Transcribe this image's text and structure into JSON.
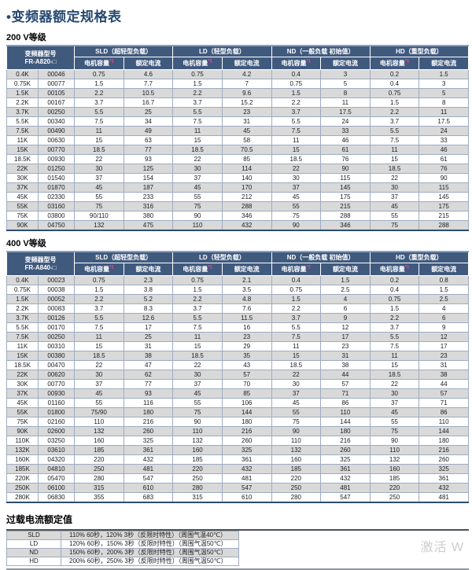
{
  "title_bullet": "•",
  "title": "变频器额定规格表",
  "watermark": "激活 W",
  "columns": {
    "capacity": "电机容量",
    "capacity_note": "*1",
    "current": "额定电流"
  },
  "load_groups": [
    "SLD（超轻型负载）",
    "LD（轻型负载）",
    "ND（一般负载 初始值）",
    "HD（重型负载）"
  ],
  "table_200v": {
    "section": "200 V等级",
    "model_line1": "变频器型号",
    "model_line2": "FR-A820-□",
    "rows": [
      [
        "0.4K",
        "00046",
        "0.75",
        "4.6",
        "0.75",
        "4.2",
        "0.4",
        "3",
        "0.2",
        "1.5"
      ],
      [
        "0.75K",
        "00077",
        "1.5",
        "7.7",
        "1.5",
        "7",
        "0.75",
        "5",
        "0.4",
        "3"
      ],
      [
        "1.5K",
        "00105",
        "2.2",
        "10.5",
        "2.2",
        "9.6",
        "1.5",
        "8",
        "0.75",
        "5"
      ],
      [
        "2.2K",
        "00167",
        "3.7",
        "16.7",
        "3.7",
        "15.2",
        "2.2",
        "11",
        "1.5",
        "8"
      ],
      [
        "3.7K",
        "00250",
        "5.5",
        "25",
        "5.5",
        "23",
        "3.7",
        "17.5",
        "2.2",
        "11"
      ],
      [
        "5.5K",
        "00340",
        "7.5",
        "34",
        "7.5",
        "31",
        "5.5",
        "24",
        "3.7",
        "17.5"
      ],
      [
        "7.5K",
        "00490",
        "11",
        "49",
        "11",
        "45",
        "7.5",
        "33",
        "5.5",
        "24"
      ],
      [
        "11K",
        "00630",
        "15",
        "63",
        "15",
        "58",
        "11",
        "46",
        "7.5",
        "33"
      ],
      [
        "15K",
        "00770",
        "18.5",
        "77",
        "18.5",
        "70.5",
        "15",
        "61",
        "11",
        "46"
      ],
      [
        "18.5K",
        "00930",
        "22",
        "93",
        "22",
        "85",
        "18.5",
        "76",
        "15",
        "61"
      ],
      [
        "22K",
        "01250",
        "30",
        "125",
        "30",
        "114",
        "22",
        "90",
        "18.5",
        "76"
      ],
      [
        "30K",
        "01540",
        "37",
        "154",
        "37",
        "140",
        "30",
        "115",
        "22",
        "90"
      ],
      [
        "37K",
        "01870",
        "45",
        "187",
        "45",
        "170",
        "37",
        "145",
        "30",
        "115"
      ],
      [
        "45K",
        "02330",
        "55",
        "233",
        "55",
        "212",
        "45",
        "175",
        "37",
        "145"
      ],
      [
        "55K",
        "03160",
        "75",
        "316",
        "75",
        "288",
        "55",
        "215",
        "45",
        "175"
      ],
      [
        "75K",
        "03800",
        "90/110",
        "380",
        "90",
        "346",
        "75",
        "288",
        "55",
        "215"
      ],
      [
        "90K",
        "04750",
        "132",
        "475",
        "110",
        "432",
        "90",
        "346",
        "75",
        "288"
      ]
    ]
  },
  "table_400v": {
    "section": "400 V等级",
    "model_line1": "变频器型号",
    "model_line2": "FR-A840-□",
    "rows": [
      [
        "0.4K",
        "00023",
        "0.75",
        "2.3",
        "0.75",
        "2.1",
        "0.4",
        "1.5",
        "0.2",
        "0.8"
      ],
      [
        "0.75K",
        "00038",
        "1.5",
        "3.8",
        "1.5",
        "3.5",
        "0.75",
        "2.5",
        "0.4",
        "1.5"
      ],
      [
        "1.5K",
        "00052",
        "2.2",
        "5.2",
        "2.2",
        "4.8",
        "1.5",
        "4",
        "0.75",
        "2.5"
      ],
      [
        "2.2K",
        "00083",
        "3.7",
        "8.3",
        "3.7",
        "7.6",
        "2.2",
        "6",
        "1.5",
        "4"
      ],
      [
        "3.7K",
        "00126",
        "5.5",
        "12.6",
        "5.5",
        "11.5",
        "3.7",
        "9",
        "2.2",
        "6"
      ],
      [
        "5.5K",
        "00170",
        "7.5",
        "17",
        "7.5",
        "16",
        "5.5",
        "12",
        "3.7",
        "9"
      ],
      [
        "7.5K",
        "00250",
        "11",
        "25",
        "11",
        "23",
        "7.5",
        "17",
        "5.5",
        "12"
      ],
      [
        "11K",
        "00310",
        "15",
        "31",
        "15",
        "29",
        "11",
        "23",
        "7.5",
        "17"
      ],
      [
        "15K",
        "00380",
        "18.5",
        "38",
        "18.5",
        "35",
        "15",
        "31",
        "11",
        "23"
      ],
      [
        "18.5K",
        "00470",
        "22",
        "47",
        "22",
        "43",
        "18.5",
        "38",
        "15",
        "31"
      ],
      [
        "22K",
        "00620",
        "30",
        "62",
        "30",
        "57",
        "22",
        "44",
        "18.5",
        "38"
      ],
      [
        "30K",
        "00770",
        "37",
        "77",
        "37",
        "70",
        "30",
        "57",
        "22",
        "44"
      ],
      [
        "37K",
        "00930",
        "45",
        "93",
        "45",
        "85",
        "37",
        "71",
        "30",
        "57"
      ],
      [
        "45K",
        "01160",
        "55",
        "116",
        "55",
        "106",
        "45",
        "86",
        "37",
        "71"
      ],
      [
        "55K",
        "01800",
        "75/90",
        "180",
        "75",
        "144",
        "55",
        "110",
        "45",
        "86"
      ],
      [
        "75K",
        "02160",
        "110",
        "216",
        "90",
        "180",
        "75",
        "144",
        "55",
        "110"
      ],
      [
        "90K",
        "02600",
        "132",
        "260",
        "110",
        "216",
        "90",
        "180",
        "75",
        "144"
      ],
      [
        "110K",
        "03250",
        "160",
        "325",
        "132",
        "260",
        "110",
        "216",
        "90",
        "180"
      ],
      [
        "132K",
        "03610",
        "185",
        "361",
        "160",
        "325",
        "132",
        "260",
        "110",
        "216"
      ],
      [
        "160K",
        "04320",
        "220",
        "432",
        "185",
        "361",
        "160",
        "325",
        "132",
        "260"
      ],
      [
        "185K",
        "04810",
        "250",
        "481",
        "220",
        "432",
        "185",
        "361",
        "160",
        "325"
      ],
      [
        "220K",
        "05470",
        "280",
        "547",
        "250",
        "481",
        "220",
        "432",
        "185",
        "361"
      ],
      [
        "250K",
        "06100",
        "315",
        "610",
        "280",
        "547",
        "250",
        "481",
        "220",
        "432"
      ],
      [
        "280K",
        "06830",
        "355",
        "683",
        "315",
        "610",
        "280",
        "547",
        "250",
        "481"
      ]
    ]
  },
  "overload": {
    "section": "过载电流额定值",
    "rows": [
      [
        "SLD",
        "110% 60秒，120% 3秒（反限时特性）（周围气温40℃）"
      ],
      [
        "LD",
        "120% 60秒，150% 3秒（反限时特性）（周围气温50℃）"
      ],
      [
        "ND",
        "150% 60秒，200% 3秒（反限时特性）（周围气温50℃）"
      ],
      [
        "HD",
        "200% 60秒，250% 3秒（反限时特性）（周围气温50℃）"
      ]
    ]
  }
}
